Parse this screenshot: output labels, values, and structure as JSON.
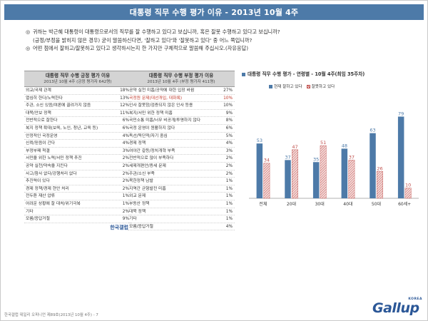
{
  "title": "대통령 직무 수행 평가 이유 - 2013년 10월 4주",
  "questions": {
    "q1_bullet": "◎",
    "q1": "귀하는 박근혜 대통령이 대통령으로서의 직무를 잘 수행하고 있다고 보십니까, 혹은 잘못 수행하고 있다고 보십니까?",
    "q1_sub": "(긍정/부정을 밝히지 않은 경우) 굳이 말씀하신다면, '잘하고 있다'와 '잘못하고 있다' 중 어느 쪽입니까?",
    "q2_bullet": "◎",
    "q2": "어떤 점에서 잘하고/잘못하고 있다고 생각하시는지 한 가지만 구체적으로 말씀해 주십시오.(자유응답)"
  },
  "left_table": {
    "header": "대통령 직무 수행 긍정 평가 이유",
    "subheader": "2013년 10월 4주 (긍정 평가자 642명)",
    "rows": [
      {
        "label": "외교/국제 관계",
        "value": "18%"
      },
      {
        "label": "열심히 한다/노력한다",
        "value": "13%"
      },
      {
        "label": "주관, 소신 있음/여론에 끌려가지 않음",
        "value": "12%"
      },
      {
        "label": "대북/안보 정책",
        "value": "11%"
      },
      {
        "label": "전반적으로 잘한다",
        "value": "6%"
      },
      {
        "label": "복지 정책 확대(보육, 노인, 청년, 교육 등)",
        "value": "6%"
      },
      {
        "label": "안정적인 국정운영",
        "value": "4%"
      },
      {
        "label": "신뢰/믿음이 간다",
        "value": "4%"
      },
      {
        "label": "부정부패 척결",
        "value": "3%"
      },
      {
        "label": "서민을 위한 노력/서민 정책 추진",
        "value": "2%"
      },
      {
        "label": "공약 실천/약속을 지킨다",
        "value": "2%"
      },
      {
        "label": "사고/참사 없다/강행처리 없다",
        "value": "2%"
      },
      {
        "label": "추진력이 있다",
        "value": "2%"
      },
      {
        "label": "경제 정책/경제 현안 처리",
        "value": "2%"
      },
      {
        "label": "전두환 재산 압류",
        "value": "1%"
      },
      {
        "label": "어려운 상황에 잘 대처/위기극복",
        "value": "1%"
      },
      {
        "label": "기타",
        "value": "2%"
      },
      {
        "label": "모름/응답거절",
        "value": "9%"
      }
    ],
    "footer": "한국갤럽"
  },
  "right_table": {
    "header": "대통령 직무 수행 부정 평가 이유",
    "subheader": "2013년 10월 4주 (부정 평가자 411명)",
    "rows": [
      {
        "label": "공약 실천 미흡/공약에 대한 입장 바뀜",
        "value": "27%",
        "highlight": false
      },
      {
        "label": "국정원 문제(대선개입, 대화록)",
        "value": "10%",
        "highlight": true
      },
      {
        "label": "인사 잘못함/검증되지 않은 인사 등용",
        "value": "10%",
        "highlight": false
      },
      {
        "label": "복지/서민 위한 정책 미흡",
        "value": "9%",
        "highlight": false
      },
      {
        "label": "국민소통 미흡/너무 비공개/투명하지 않다",
        "value": "8%",
        "highlight": false
      },
      {
        "label": "국정 운영이 원활하지 않다",
        "value": "6%",
        "highlight": false
      },
      {
        "label": "독선/독단적/자기 중심",
        "value": "5%",
        "highlight": false
      },
      {
        "label": "경제 정책",
        "value": "4%",
        "highlight": false
      },
      {
        "label": "여야간 갈등/정치개혁 부족",
        "value": "3%",
        "highlight": false
      },
      {
        "label": "전반적으로 많이 부족하다",
        "value": "2%",
        "highlight": false
      },
      {
        "label": "세제개편안/증세 문제",
        "value": "2%",
        "highlight": false
      },
      {
        "label": "주관/소신 부족",
        "value": "2%",
        "highlight": false
      },
      {
        "label": "북한정책 남발",
        "value": "1%",
        "highlight": false
      },
      {
        "label": "지역간 균형발전 미흡",
        "value": "1%",
        "highlight": false
      },
      {
        "label": "외교 문제",
        "value": "1%",
        "highlight": false
      },
      {
        "label": "부동산 정책",
        "value": "1%",
        "highlight": false
      },
      {
        "label": "대북 정책",
        "value": "1%",
        "highlight": false
      },
      {
        "label": "기타",
        "value": "1%",
        "highlight": false
      },
      {
        "label": "모름/응답거절",
        "value": "4%",
        "highlight": false
      }
    ]
  },
  "chart_data": {
    "type": "bar",
    "title": "대통령 직무 수행 평가 - 연령별 - 10월 4주(최임 35주차)",
    "categories": [
      "전체",
      "20대",
      "30대",
      "40대",
      "50대",
      "60세+"
    ],
    "series": [
      {
        "name": "현재 잘하고 있다",
        "values": [
          53,
          37,
          35,
          48,
          63,
          79
        ],
        "color": "#4d7aa8",
        "pattern": "solid"
      },
      {
        "name": "잘못하고 있다",
        "values": [
          34,
          47,
          51,
          37,
          26,
          10
        ],
        "color": "#c0504d",
        "pattern": "hatched"
      }
    ],
    "ylim": [
      0,
      100
    ],
    "grid": false,
    "legend": "top",
    "xlabel": "",
    "ylabel": ""
  },
  "footer_note": "한국갤럽 데일리 오피니언 제89호(2013년 10월 4주) - 7",
  "logo": {
    "korea": "KOREA",
    "word": "Gallup"
  }
}
